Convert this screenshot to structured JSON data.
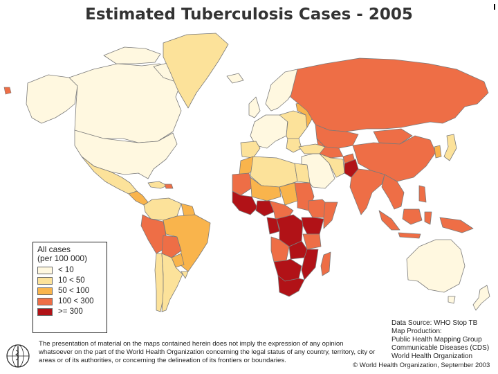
{
  "title": "Estimated Tuberculosis Cases - 2005",
  "legend": {
    "title_line1": "All cases",
    "title_line2": "(per 100 000)",
    "items": [
      {
        "label": "< 10",
        "color": "#FFF8E0"
      },
      {
        "label": "10 < 50",
        "color": "#FCE29A"
      },
      {
        "label": "50 < 100",
        "color": "#F9B44C"
      },
      {
        "label": "100 < 300",
        "color": "#EE6E46"
      },
      {
        "label": ">= 300",
        "color": "#B11217"
      }
    ]
  },
  "source": {
    "line1": "Data Source: WHO Stop TB",
    "line2": "Map Production:",
    "line3": "Public Health Mapping Group",
    "line4": "Communicable Diseases (CDS)",
    "line5": "World Health Organization"
  },
  "disclaimer": "The presentation of material on the maps contained herein does not imply the expression of any opinion whatsoever on the part of the World Health Organization concerning the legal status of any country, territory, city or areas or of its authorities, or concerning the delineation of its frontiers or boundaries.",
  "copyright": "© World Health Organization, September 2003",
  "colors": {
    "ocean": "#ffffff",
    "border": "#7a7a7a"
  }
}
